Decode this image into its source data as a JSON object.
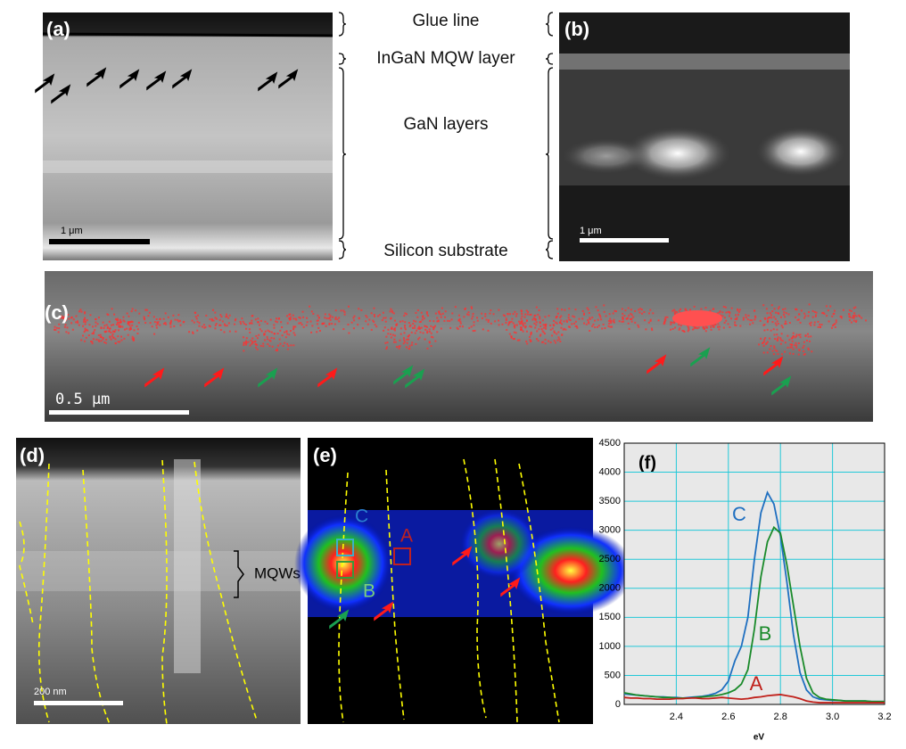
{
  "panels": {
    "a": {
      "label": "(a)",
      "scale": "1 μm"
    },
    "b": {
      "label": "(b)",
      "scale": "1 μm"
    },
    "c": {
      "label": "(c)",
      "scale": "0.5 μm"
    },
    "d": {
      "label": "(d)",
      "scale": "200 nm",
      "annotation": "MQWs"
    },
    "e": {
      "label": "(e)",
      "regions": [
        "C",
        "A",
        "B"
      ]
    },
    "layers": [
      "Glue line",
      "InGaN MQW layer",
      "GaN layers",
      "Silicon substrate"
    ]
  },
  "chart_data": {
    "type": "line",
    "title": "(f)",
    "x_label": "eV",
    "x": [
      2.2,
      2.225,
      2.25,
      2.275,
      2.3,
      2.325,
      2.35,
      2.375,
      2.4,
      2.425,
      2.45,
      2.475,
      2.5,
      2.525,
      2.55,
      2.575,
      2.6,
      2.625,
      2.65,
      2.675,
      2.7,
      2.725,
      2.75,
      2.775,
      2.8,
      2.825,
      2.85,
      2.875,
      2.9,
      2.925,
      2.95,
      2.975,
      3.0,
      3.025,
      3.05,
      3.075,
      3.1,
      3.125,
      3.15,
      3.175,
      3.2
    ],
    "series": [
      {
        "name": "C",
        "color": "#1f6fc0",
        "values": [
          180,
          170,
          160,
          150,
          140,
          130,
          130,
          120,
          120,
          110,
          120,
          130,
          140,
          160,
          190,
          250,
          400,
          750,
          1000,
          1500,
          2500,
          3300,
          3650,
          3450,
          2900,
          2100,
          1200,
          550,
          250,
          130,
          90,
          80,
          70,
          70,
          60,
          60,
          60,
          60,
          50,
          50,
          50
        ]
      },
      {
        "name": "B",
        "color": "#1a8a2a",
        "values": [
          200,
          180,
          160,
          150,
          140,
          130,
          120,
          120,
          110,
          110,
          110,
          120,
          130,
          140,
          150,
          170,
          200,
          250,
          350,
          600,
          1300,
          2200,
          2800,
          3050,
          2950,
          2400,
          1700,
          1000,
          450,
          200,
          120,
          90,
          80,
          70,
          60,
          60,
          60,
          60,
          50,
          50,
          50
        ]
      },
      {
        "name": "A",
        "color": "#c0201a",
        "values": [
          120,
          110,
          110,
          100,
          100,
          90,
          90,
          90,
          100,
          100,
          110,
          110,
          100,
          100,
          110,
          120,
          110,
          100,
          90,
          100,
          120,
          130,
          150,
          160,
          170,
          150,
          130,
          100,
          60,
          40,
          30,
          30,
          30,
          30,
          30,
          30,
          30,
          30,
          30,
          30,
          30
        ]
      }
    ],
    "xlim": [
      2.2,
      3.2
    ],
    "xticks": [
      2.4,
      2.6,
      2.8,
      {
        "value": 3,
        "label": "3.0"
      },
      3.2
    ],
    "ylim": [
      0,
      4500
    ],
    "yticks": [
      0,
      500,
      1000,
      1500,
      2000,
      2500,
      3000,
      3500,
      4000,
      4500
    ],
    "grid": true,
    "grid_color": "#22c8d8",
    "background": "#e8e8e8"
  }
}
